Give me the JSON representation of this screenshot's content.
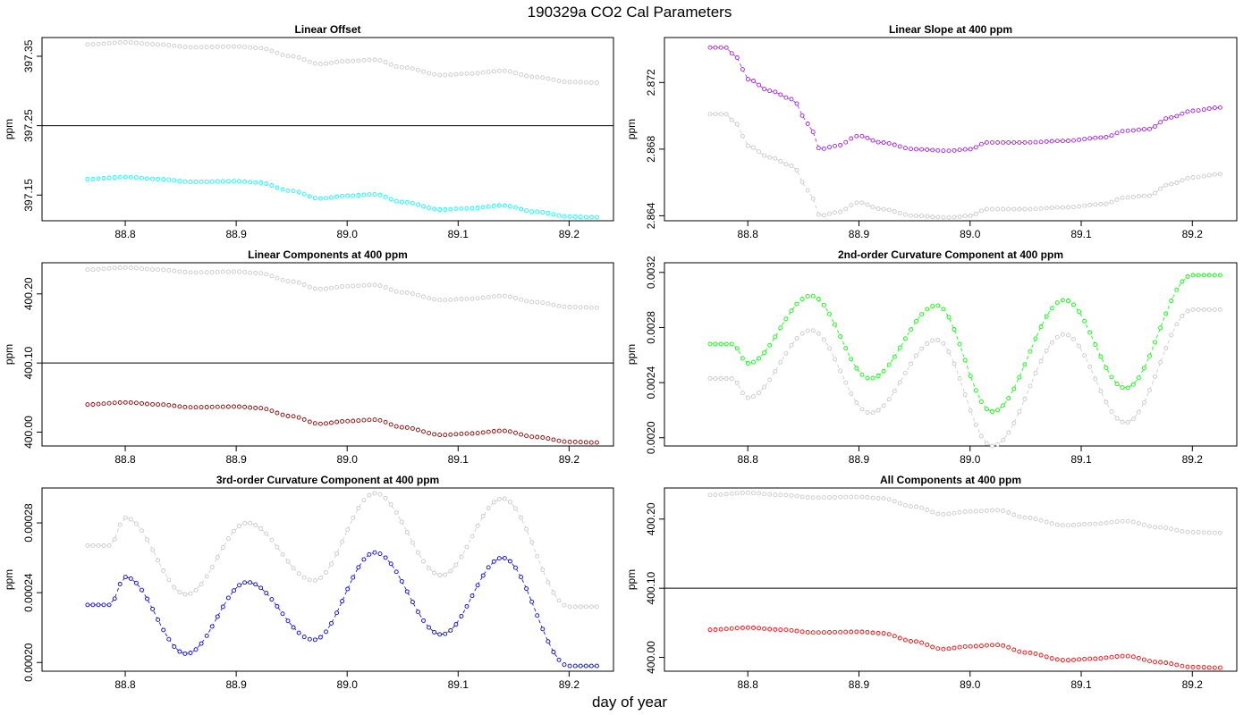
{
  "figure": {
    "title": "190329a   CO2 Cal Parameters",
    "xlabel": "day of year"
  },
  "chart_data": [
    {
      "type": "scatter",
      "title": "Linear Offset",
      "xlabel": "",
      "ylabel": "ppm",
      "xlim": [
        88.725,
        89.24
      ],
      "xticks": [
        88.8,
        88.9,
        89.0,
        89.1,
        89.2
      ],
      "xtick_labels": [
        "88.8",
        "88.9",
        "89.0",
        "89.1",
        "89.2"
      ],
      "ylim": [
        397.113,
        397.377
      ],
      "yticks": [
        397.15,
        397.25,
        397.35
      ],
      "ytick_labels": [
        "397.15",
        "397.25",
        "397.35"
      ],
      "hline": 397.25,
      "series": [
        {
          "color": "#00ffff",
          "connected": false,
          "x": [
            88.766,
            88.8,
            88.83,
            88.86,
            88.9,
            88.92,
            88.95,
            88.975,
            89.0,
            89.025,
            89.05,
            89.085,
            89.11,
            89.14,
            89.17,
            89.2,
            89.225
          ],
          "y": [
            397.173,
            397.176,
            397.173,
            397.169,
            397.17,
            397.168,
            397.156,
            397.145,
            397.149,
            397.151,
            397.14,
            397.129,
            397.131,
            397.135,
            397.126,
            397.119,
            397.118
          ]
        },
        {
          "color": "#c8c8c8",
          "connected": false,
          "x": [
            88.766,
            88.8,
            88.83,
            88.86,
            88.9,
            88.92,
            88.95,
            88.975,
            89.0,
            89.025,
            89.05,
            89.085,
            89.11,
            89.14,
            89.17,
            89.2,
            89.225
          ],
          "y": [
            397.367,
            397.37,
            397.367,
            397.363,
            397.364,
            397.362,
            397.35,
            397.339,
            397.343,
            397.345,
            397.334,
            397.323,
            397.325,
            397.329,
            397.32,
            397.313,
            397.312
          ]
        }
      ]
    },
    {
      "type": "scatter",
      "title": "Linear Slope at 400 ppm",
      "xlabel": "",
      "ylabel": "ppm",
      "xlim": [
        88.725,
        89.24
      ],
      "xticks": [
        88.8,
        88.9,
        89.0,
        89.1,
        89.2
      ],
      "xtick_labels": [
        "88.8",
        "88.9",
        "89.0",
        "89.1",
        "89.2"
      ],
      "ylim": [
        2.8637,
        2.8747
      ],
      "yticks": [
        2.864,
        2.868,
        2.872
      ],
      "ytick_labels": [
        "2.864",
        "2.868",
        "2.872"
      ],
      "series": [
        {
          "color": "#a020f0",
          "connected": true,
          "x": [
            88.766,
            88.78,
            88.79,
            88.8,
            88.82,
            88.84,
            88.855,
            88.865,
            88.88,
            88.9,
            88.92,
            88.95,
            88.98,
            89.0,
            89.015,
            89.05,
            89.085,
            89.12,
            89.14,
            89.16,
            89.18,
            89.2,
            89.225
          ],
          "y": [
            2.8741,
            2.8741,
            2.8735,
            2.8722,
            2.8715,
            2.871,
            2.8695,
            2.868,
            2.8682,
            2.8688,
            2.8684,
            2.868,
            2.8679,
            2.868,
            2.8684,
            2.8684,
            2.8685,
            2.8687,
            2.8691,
            2.8692,
            2.8699,
            2.8703,
            2.8705
          ]
        },
        {
          "color": "#c8c8c8",
          "connected": true,
          "x": [
            88.766,
            88.78,
            88.79,
            88.8,
            88.82,
            88.84,
            88.855,
            88.865,
            88.88,
            88.9,
            88.92,
            88.95,
            88.98,
            89.0,
            89.015,
            89.05,
            89.085,
            89.12,
            89.14,
            89.16,
            89.18,
            89.2,
            89.225
          ],
          "y": [
            2.8701,
            2.8701,
            2.8695,
            2.8682,
            2.8675,
            2.867,
            2.8655,
            2.864,
            2.8642,
            2.8648,
            2.8644,
            2.864,
            2.8639,
            2.864,
            2.8644,
            2.8644,
            2.8645,
            2.8647,
            2.8651,
            2.8652,
            2.8659,
            2.8663,
            2.8665
          ]
        }
      ]
    },
    {
      "type": "scatter",
      "title": "Linear Components at 400 ppm",
      "xlabel": "",
      "ylabel": "ppm",
      "xlim": [
        88.725,
        89.24
      ],
      "xticks": [
        88.8,
        88.9,
        89.0,
        89.1,
        89.2
      ],
      "xtick_labels": [
        "88.8",
        "88.9",
        "89.0",
        "89.1",
        "89.2"
      ],
      "ylim": [
        399.98,
        400.245
      ],
      "yticks": [
        400.0,
        400.1,
        400.2
      ],
      "ytick_labels": [
        "400.00",
        "400.10",
        "400.20"
      ],
      "hline": 400.1,
      "series": [
        {
          "color": "#8b0000",
          "connected": false,
          "x": [
            88.766,
            88.8,
            88.83,
            88.86,
            88.9,
            88.92,
            88.95,
            88.975,
            89.0,
            89.025,
            89.05,
            89.085,
            89.11,
            89.14,
            89.17,
            89.2,
            89.225
          ],
          "y": [
            400.04,
            400.043,
            400.04,
            400.036,
            400.037,
            400.035,
            400.023,
            400.012,
            400.016,
            400.018,
            400.007,
            399.996,
            399.998,
            400.002,
            399.993,
            399.986,
            399.985
          ]
        },
        {
          "color": "#c8c8c8",
          "connected": false,
          "x": [
            88.766,
            88.8,
            88.83,
            88.86,
            88.9,
            88.92,
            88.95,
            88.975,
            89.0,
            89.025,
            89.05,
            89.085,
            89.11,
            89.14,
            89.17,
            89.2,
            89.225
          ],
          "y": [
            400.235,
            400.238,
            400.235,
            400.231,
            400.232,
            400.23,
            400.218,
            400.207,
            400.211,
            400.213,
            400.202,
            400.191,
            400.193,
            400.197,
            400.188,
            400.181,
            400.18
          ]
        }
      ]
    },
    {
      "type": "scatter",
      "title": "2nd-order Curvature Component at 400 ppm",
      "xlabel": "",
      "ylabel": "ppm",
      "xlim": [
        88.725,
        89.24
      ],
      "xticks": [
        88.8,
        88.9,
        89.0,
        89.1,
        89.2
      ],
      "xtick_labels": [
        "88.8",
        "88.9",
        "89.0",
        "89.1",
        "89.2"
      ],
      "ylim": [
        0.00194,
        0.00327
      ],
      "yticks": [
        0.002,
        0.0024,
        0.0028,
        0.0032
      ],
      "ytick_labels": [
        "0.0020",
        "0.0024",
        "0.0028",
        "0.0032"
      ],
      "series": [
        {
          "color": "#00ff00",
          "connected": true,
          "x": [
            88.766,
            88.786,
            88.8,
            88.857,
            88.91,
            88.97,
            89.02,
            89.085,
            89.14,
            89.2,
            89.225
          ],
          "y": [
            0.00268,
            0.00268,
            0.00254,
            0.00303,
            0.00243,
            0.00296,
            0.00219,
            0.003,
            0.00236,
            0.00318,
            0.00318
          ]
        },
        {
          "color": "#c8c8c8",
          "connected": true,
          "x": [
            88.766,
            88.786,
            88.8,
            88.857,
            88.91,
            88.97,
            89.02,
            89.085,
            89.14,
            89.2,
            89.225
          ],
          "y": [
            0.00243,
            0.00243,
            0.00229,
            0.00278,
            0.00218,
            0.00271,
            0.00194,
            0.00275,
            0.00211,
            0.00293,
            0.00293
          ]
        }
      ]
    },
    {
      "type": "scatter",
      "title": "3rd-order Curvature Component at 400 ppm",
      "xlabel": "",
      "ylabel": "ppm",
      "xlim": [
        88.725,
        89.24
      ],
      "xticks": [
        88.8,
        88.9,
        89.0,
        89.1,
        89.2
      ],
      "xtick_labels": [
        "88.8",
        "88.9",
        "89.0",
        "89.1",
        "89.2"
      ],
      "ylim": [
        0.000195,
        0.0003
      ],
      "yticks": [
        0.0002,
        0.00024,
        0.00028
      ],
      "ytick_labels": [
        "0.00020",
        "0.00024",
        "0.00028"
      ],
      "series": [
        {
          "color": "#0000ff",
          "connected": true,
          "x": [
            88.766,
            88.786,
            88.8,
            88.855,
            88.91,
            88.97,
            89.025,
            89.085,
            89.14,
            89.2,
            89.225
          ],
          "y": [
            0.000233,
            0.000233,
            0.000249,
            0.000205,
            0.000246,
            0.000213,
            0.000263,
            0.000216,
            0.00026,
            0.000198,
            0.000198
          ]
        },
        {
          "color": "#c8c8c8",
          "connected": true,
          "x": [
            88.766,
            88.786,
            88.8,
            88.855,
            88.91,
            88.97,
            89.025,
            89.085,
            89.14,
            89.2,
            89.225
          ],
          "y": [
            0.000267,
            0.000267,
            0.000283,
            0.000239,
            0.00028,
            0.000247,
            0.000297,
            0.00025,
            0.000294,
            0.000232,
            0.000232
          ]
        }
      ]
    },
    {
      "type": "scatter",
      "title": "All Components at 400 ppm",
      "xlabel": "",
      "ylabel": "ppm",
      "xlim": [
        88.725,
        89.24
      ],
      "xticks": [
        88.8,
        88.9,
        89.0,
        89.1,
        89.2
      ],
      "xtick_labels": [
        "88.8",
        "88.9",
        "89.0",
        "89.1",
        "89.2"
      ],
      "ylim": [
        399.98,
        400.245
      ],
      "yticks": [
        400.0,
        400.1,
        400.2
      ],
      "ytick_labels": [
        "400.00",
        "400.10",
        "400.20"
      ],
      "hline": 400.1,
      "series": [
        {
          "color": "#ff0000",
          "connected": false,
          "x": [
            88.766,
            88.8,
            88.83,
            88.86,
            88.9,
            88.92,
            88.95,
            88.975,
            89.0,
            89.025,
            89.05,
            89.085,
            89.11,
            89.14,
            89.17,
            89.2,
            89.225
          ],
          "y": [
            400.04,
            400.043,
            400.04,
            400.036,
            400.037,
            400.035,
            400.023,
            400.012,
            400.016,
            400.018,
            400.007,
            399.996,
            399.998,
            400.002,
            399.993,
            399.986,
            399.985
          ]
        },
        {
          "color": "#c8c8c8",
          "connected": false,
          "x": [
            88.766,
            88.8,
            88.83,
            88.86,
            88.9,
            88.92,
            88.95,
            88.975,
            89.0,
            89.025,
            89.05,
            89.085,
            89.11,
            89.14,
            89.17,
            89.2,
            89.225
          ],
          "y": [
            400.235,
            400.238,
            400.235,
            400.231,
            400.232,
            400.23,
            400.218,
            400.207,
            400.211,
            400.213,
            400.202,
            400.191,
            400.193,
            400.197,
            400.188,
            400.181,
            400.18
          ]
        }
      ]
    }
  ]
}
